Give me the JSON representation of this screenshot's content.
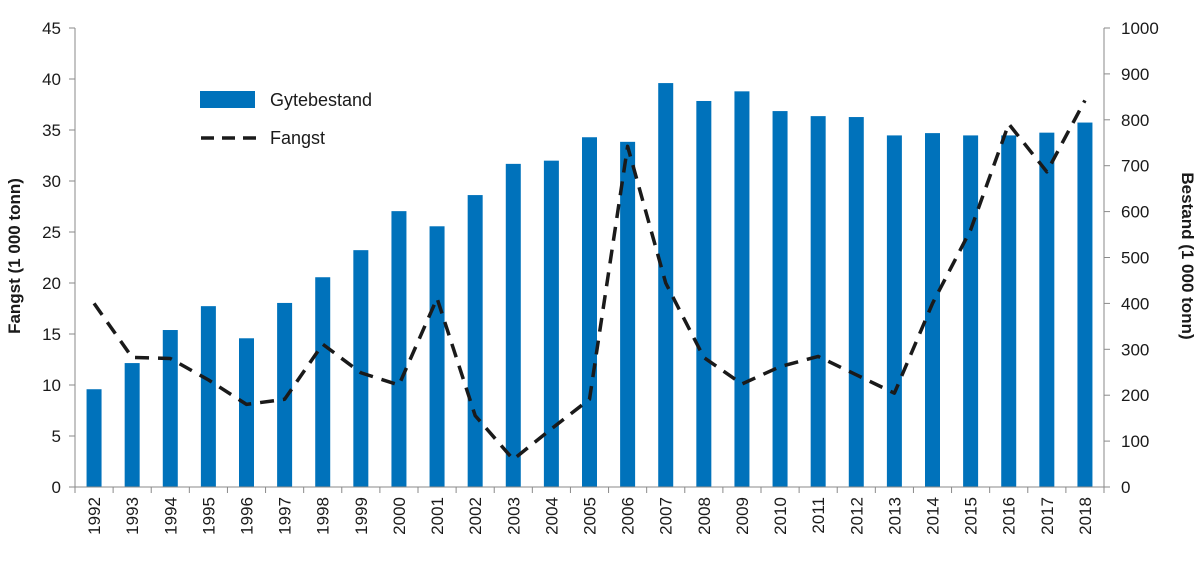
{
  "chart_data": {
    "type": "bar+line",
    "categories": [
      "1992",
      "1993",
      "1994",
      "1995",
      "1996",
      "1997",
      "1998",
      "1999",
      "2000",
      "2001",
      "2002",
      "2003",
      "2004",
      "2005",
      "2006",
      "2007",
      "2008",
      "2009",
      "2010",
      "2011",
      "2012",
      "2013",
      "2014",
      "2015",
      "2016",
      "2017",
      "2018"
    ],
    "series": [
      {
        "name": "Gytebestand",
        "type": "bar",
        "axis": "right",
        "color": "#0072bb",
        "values": [
          213,
          270,
          342,
          394,
          324,
          401,
          457,
          516,
          601,
          568,
          636,
          704,
          711,
          762,
          752,
          880,
          841,
          862,
          819,
          808,
          806,
          766,
          771,
          766,
          766,
          772,
          794
        ]
      },
      {
        "name": "Fangst",
        "type": "line",
        "style": "dashed",
        "axis": "left",
        "color": "#1a1a1a",
        "values": [
          18.0,
          12.7,
          12.6,
          10.5,
          8.1,
          8.6,
          14.0,
          11.2,
          10.0,
          18.5,
          7.0,
          2.7,
          5.7,
          8.6,
          33.4,
          20.0,
          12.7,
          10.1,
          11.8,
          12.8,
          11.0,
          9.2,
          18.0,
          25.2,
          35.6,
          30.9,
          37.9
        ]
      }
    ],
    "y_left": {
      "label": "Fangst (1 000 tonn)",
      "range": [
        0,
        45
      ],
      "ticks": [
        "0",
        "5",
        "10",
        "15",
        "20",
        "25",
        "30",
        "35",
        "40",
        "45"
      ]
    },
    "y_right": {
      "label": "Bestand (1 000 tonn)",
      "range": [
        0,
        1000
      ],
      "ticks": [
        "0",
        "100",
        "200",
        "300",
        "400",
        "500",
        "600",
        "700",
        "800",
        "900",
        "1000"
      ]
    },
    "legend": {
      "position": "upper-left",
      "entries": [
        "Gytebestand",
        "Fangst"
      ]
    },
    "grid": false
  }
}
